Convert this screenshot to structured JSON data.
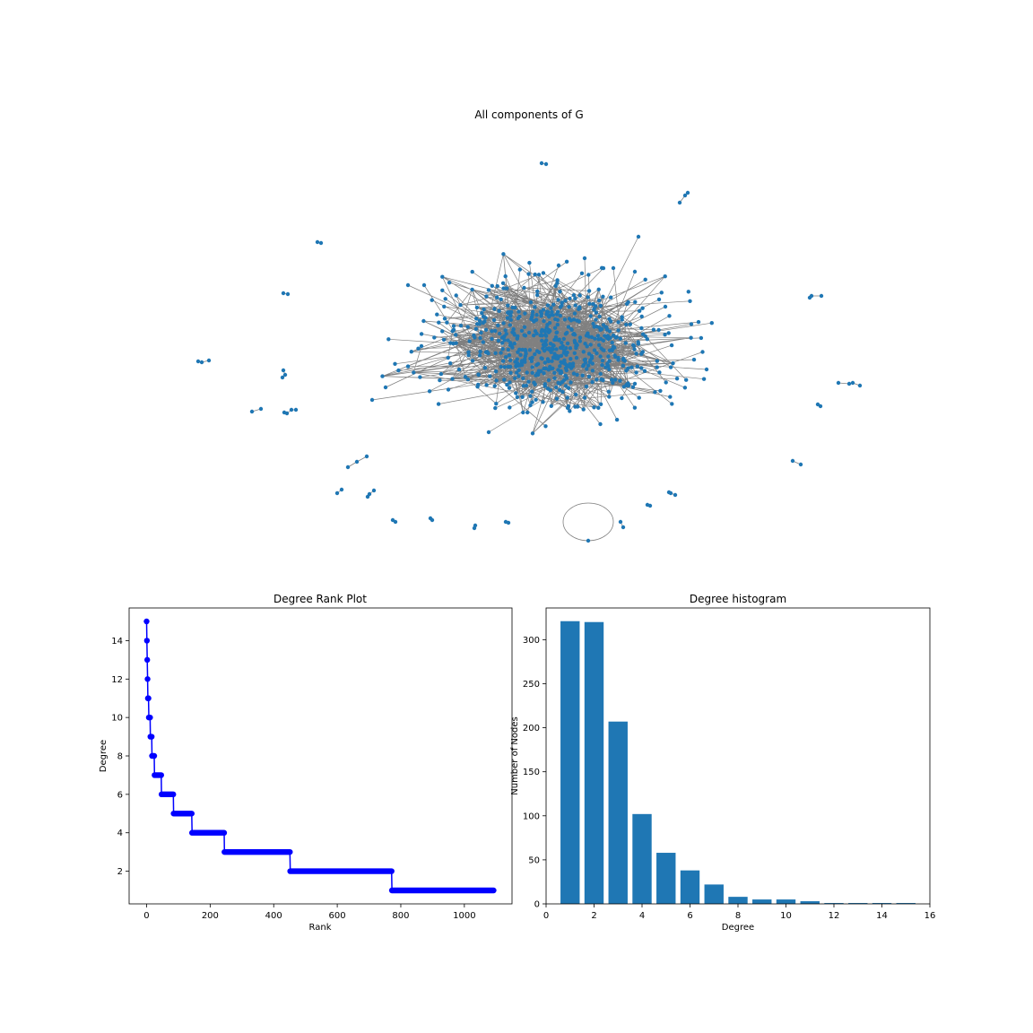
{
  "colors": {
    "node": "#1f77b4",
    "edge": "#808080",
    "rank_line": "#0000ff",
    "bar": "#1f77b4"
  },
  "chart_data": [
    {
      "type": "network",
      "title": "All components of G",
      "axes_visible": false,
      "components_note": "one giant component plus many small 2-4 node components and one self-loop node"
    },
    {
      "type": "line",
      "title": "Degree Rank Plot",
      "xlabel": "Rank",
      "ylabel": "Degree",
      "marker": "o",
      "xlim": [
        -55,
        1150
      ],
      "ylim": [
        0.3,
        15.7
      ],
      "xticks": [
        0,
        200,
        400,
        600,
        800,
        1000
      ],
      "yticks": [
        2,
        4,
        6,
        8,
        10,
        12,
        14
      ],
      "steps": [
        {
          "degree": 15,
          "from": 0,
          "to": 0
        },
        {
          "degree": 14,
          "from": 1,
          "to": 1
        },
        {
          "degree": 13,
          "from": 2,
          "to": 2
        },
        {
          "degree": 12,
          "from": 3,
          "to": 3
        },
        {
          "degree": 11,
          "from": 4,
          "to": 6
        },
        {
          "degree": 10,
          "from": 7,
          "to": 11
        },
        {
          "degree": 9,
          "from": 12,
          "to": 16
        },
        {
          "degree": 8,
          "from": 17,
          "to": 24
        },
        {
          "degree": 7,
          "from": 25,
          "to": 46
        },
        {
          "degree": 6,
          "from": 47,
          "to": 84
        },
        {
          "degree": 5,
          "from": 85,
          "to": 142
        },
        {
          "degree": 4,
          "from": 143,
          "to": 244
        },
        {
          "degree": 3,
          "from": 245,
          "to": 451
        },
        {
          "degree": 2,
          "from": 452,
          "to": 771
        },
        {
          "degree": 1,
          "from": 772,
          "to": 1092
        }
      ]
    },
    {
      "type": "bar",
      "title": "Degree histogram",
      "xlabel": "Degree",
      "ylabel": "Number of Nodes",
      "xlim": [
        0,
        16
      ],
      "ylim": [
        0,
        336
      ],
      "xticks": [
        0,
        2,
        4,
        6,
        8,
        10,
        12,
        14,
        16
      ],
      "yticks": [
        0,
        50,
        100,
        150,
        200,
        250,
        300
      ],
      "categories": [
        1,
        2,
        3,
        4,
        5,
        6,
        7,
        8,
        9,
        10,
        11,
        12,
        13,
        14,
        15
      ],
      "values": [
        321,
        320,
        207,
        102,
        58,
        38,
        22,
        8,
        5,
        5,
        3,
        1,
        1,
        1,
        1
      ]
    }
  ]
}
